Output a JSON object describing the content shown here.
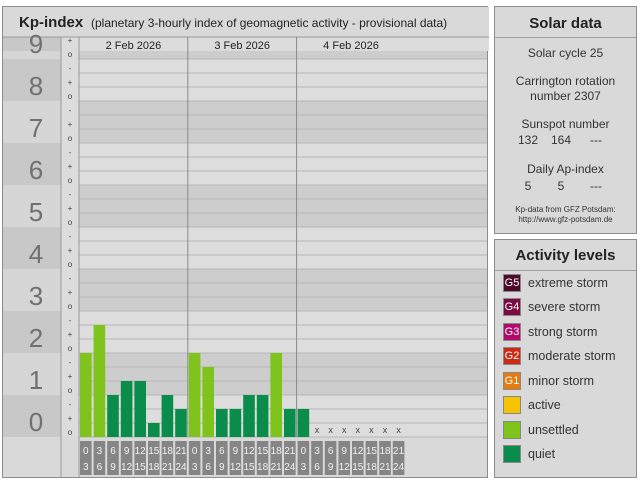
{
  "kp": {
    "title": "Kp-index",
    "subtitle": "(planetary 3-hourly index of geomagnetic activity - provisional data)",
    "y_labels": [
      "0",
      "1",
      "2",
      "3",
      "4",
      "5",
      "6",
      "7",
      "8",
      "9"
    ],
    "minor_marks": [
      "o",
      "+",
      "-"
    ],
    "missing_mark": "x",
    "time_bins": [
      [
        "0",
        "3"
      ],
      [
        "3",
        "6"
      ],
      [
        "6",
        "9"
      ],
      [
        "9",
        "12"
      ],
      [
        "12",
        "15"
      ],
      [
        "15",
        "18"
      ],
      [
        "18",
        "21"
      ],
      [
        "21",
        "24"
      ]
    ],
    "days": [
      "2 Feb 2026",
      "3 Feb 2026",
      "4 Feb 2026"
    ]
  },
  "chart_data": {
    "type": "bar",
    "title": "Kp-index",
    "subtitle": "(planetary 3-hourly index of geomagnetic activity - provisional data)",
    "ylim": [
      0,
      9
    ],
    "grid": true,
    "categories": [
      "2 Feb 2026",
      "3 Feb 2026",
      "4 Feb 2026"
    ],
    "x_bins": [
      "0-3",
      "3-6",
      "6-9",
      "9-12",
      "12-15",
      "15-18",
      "18-21",
      "21-24"
    ],
    "values": [
      [
        2.0,
        2.667,
        1.0,
        1.333,
        1.333,
        0.333,
        1.0,
        0.667
      ],
      [
        2.0,
        1.667,
        0.667,
        0.667,
        1.0,
        1.0,
        2.0,
        0.667
      ],
      [
        0.667,
        null,
        null,
        null,
        null,
        null,
        null,
        null
      ]
    ]
  },
  "solar": {
    "title": "Solar data",
    "cycle": "Solar cycle 25",
    "carrington_line1": "Carrington rotation",
    "carrington_line2": "number 2307",
    "sunspot_label": "Sunspot number",
    "sunspot_values": [
      "132",
      "164",
      "---"
    ],
    "ap_label": "Daily Ap-index",
    "ap_values": [
      "5",
      "5",
      "---"
    ],
    "note_line1": "Kp-data from GFZ Potsdam:",
    "note_line2": "http://www.gfz-potsdam.de"
  },
  "activity": {
    "title": "Activity levels",
    "levels": [
      {
        "code": "G5",
        "label": "extreme storm",
        "color": "#4d0a2b"
      },
      {
        "code": "G4",
        "label": "severe storm",
        "color": "#7a0a42"
      },
      {
        "code": "G3",
        "label": "strong storm",
        "color": "#b20a6a"
      },
      {
        "code": "G2",
        "label": "moderate storm",
        "color": "#cc2a14"
      },
      {
        "code": "G1",
        "label": "minor storm",
        "color": "#e57c12"
      },
      {
        "code": "",
        "label": "active",
        "color": "#f5c400"
      },
      {
        "code": "",
        "label": "unsettled",
        "color": "#7fc41c"
      },
      {
        "code": "",
        "label": "quiet",
        "color": "#0a8c4a"
      }
    ]
  }
}
